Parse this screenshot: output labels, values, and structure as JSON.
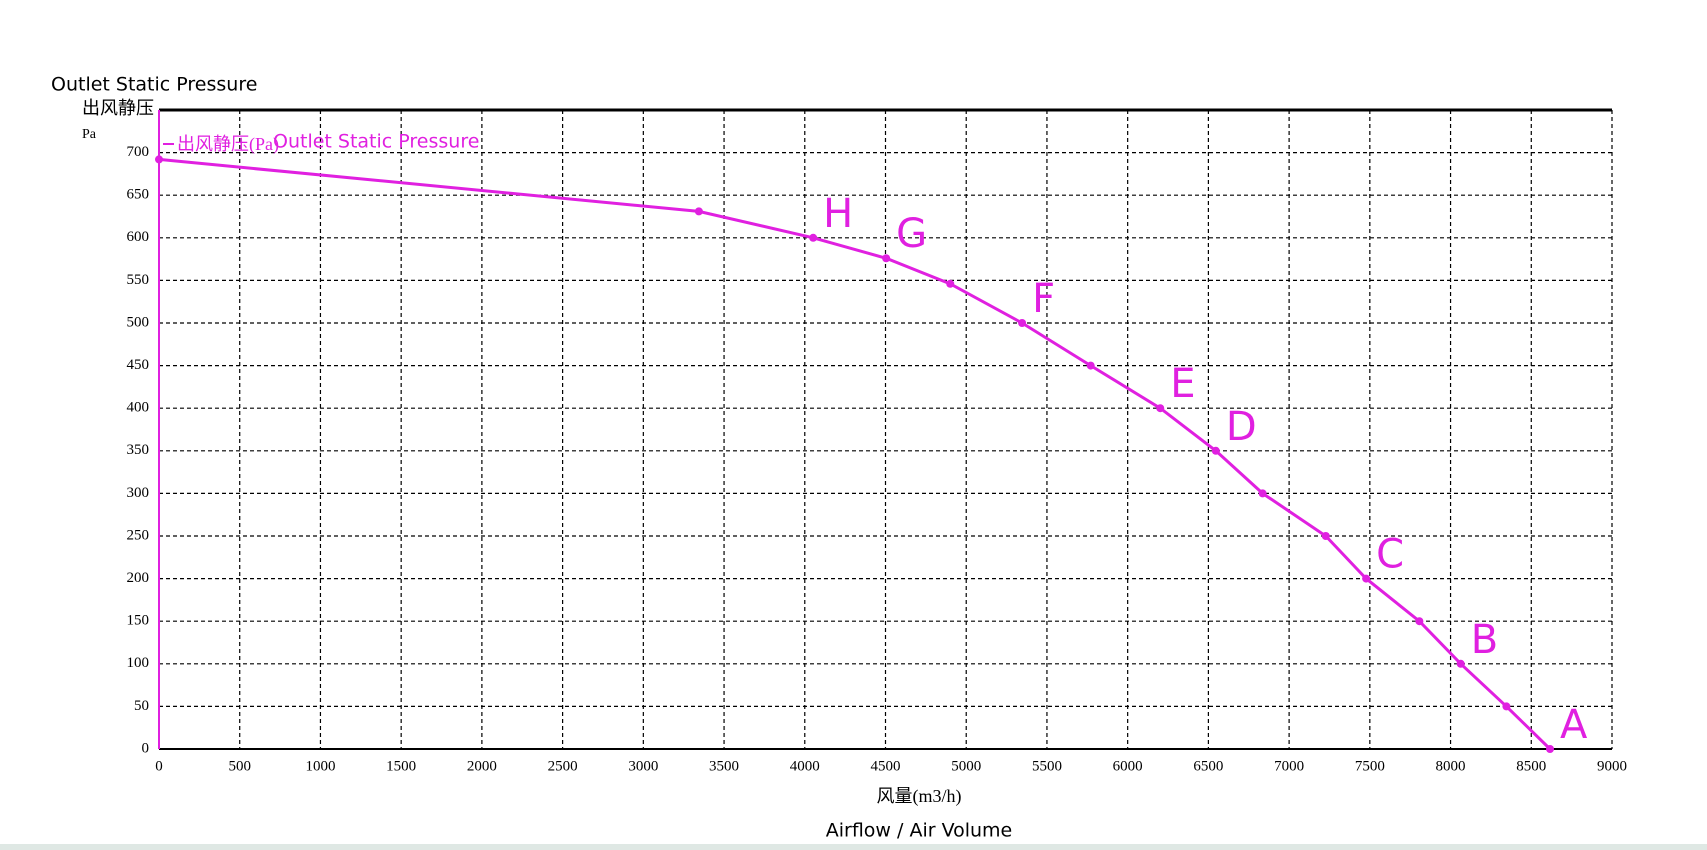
{
  "chart_data": {
    "type": "line",
    "ylabel_en": "Outlet Static Pressure",
    "ylabel": "出风静压",
    "yunit": "Pa",
    "xlabel": "风量(m3/h)",
    "xlabel_en": "Airflow / Air Volume",
    "legend_en": "Outlet Static Pressure",
    "x": [
      0,
      3344,
      4052,
      4504,
      4901,
      5346,
      5771,
      6202,
      6546,
      6836,
      7227,
      7477,
      7807,
      8063,
      8346,
      8616
    ],
    "series": [
      {
        "name": "出风静压(Pa)",
        "color": "#e020e0",
        "values": [
          692,
          631,
          600,
          576,
          546,
          500,
          450,
          400,
          350,
          300,
          250,
          200,
          150,
          100,
          50,
          0
        ],
        "point_labels": [
          null,
          null,
          "H",
          "G",
          null,
          "F",
          null,
          "E",
          "D",
          null,
          null,
          "C",
          null,
          "B",
          null,
          "A"
        ]
      }
    ],
    "xlim": [
      0,
      9000
    ],
    "xticks": [
      0,
      500,
      1000,
      1500,
      2000,
      2500,
      3000,
      3500,
      4000,
      4500,
      5000,
      5500,
      6000,
      6500,
      7000,
      7500,
      8000,
      8500,
      9000
    ],
    "ylim": [
      0,
      750
    ],
    "yticks": [
      0,
      50,
      100,
      150,
      200,
      250,
      300,
      350,
      400,
      450,
      500,
      550,
      600,
      650,
      700
    ],
    "grid": true
  }
}
